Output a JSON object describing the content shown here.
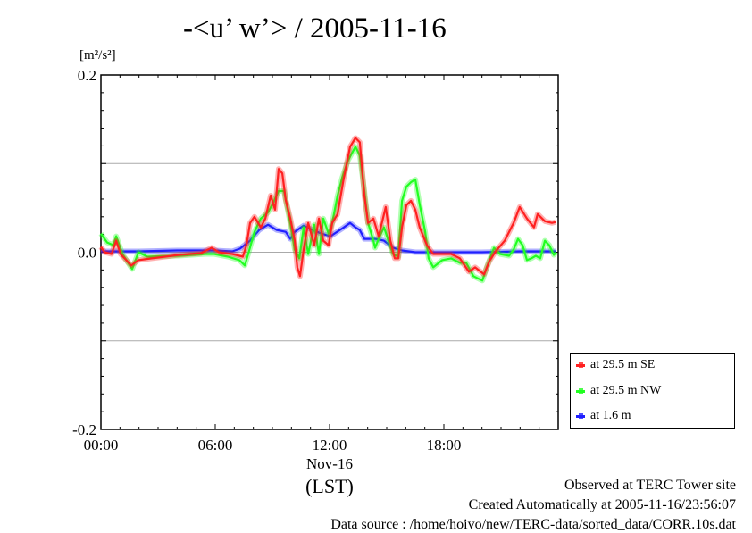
{
  "chart_data": {
    "type": "line",
    "title": "-<u’ w’> / 2005-11-16",
    "ylabel_unit": "[m²/s²]",
    "xlabel": "(LST)",
    "x_date_label": "Nov-16",
    "xlim_hours": [
      0,
      24
    ],
    "ylim": [
      -0.2,
      0.2
    ],
    "x_ticks": [
      {
        "h": 0,
        "label": "00:00"
      },
      {
        "h": 6,
        "label": "06:00"
      },
      {
        "h": 12,
        "label": "12:00"
      },
      {
        "h": 18,
        "label": "18:00"
      }
    ],
    "y_ticks": [
      {
        "v": 0.2,
        "label": "0.2"
      },
      {
        "v": 0.0,
        "label": "0.0"
      },
      {
        "v": -0.2,
        "label": "-0.2"
      }
    ],
    "gridlines_y": [
      0.1,
      0.0,
      -0.1
    ],
    "legend_placement": "bottom-right outside",
    "series": [
      {
        "name": "at 29.5 m SE",
        "color": "#ff2020",
        "points": [
          [
            0,
            0.006
          ],
          [
            0.19,
            0
          ],
          [
            0.56,
            -0.002
          ],
          [
            0.8,
            0.013
          ],
          [
            1.03,
            -0.002
          ],
          [
            1.59,
            -0.015
          ],
          [
            1.97,
            -0.009
          ],
          [
            2.67,
            -0.007
          ],
          [
            3.38,
            -0.005
          ],
          [
            4.08,
            -0.003
          ],
          [
            5.25,
            -0.001
          ],
          [
            5.81,
            0.005
          ],
          [
            6.19,
            0
          ],
          [
            6.89,
            -0.002
          ],
          [
            7.45,
            -0.005
          ],
          [
            7.64,
            0.008
          ],
          [
            7.83,
            0.033
          ],
          [
            8.06,
            0.04
          ],
          [
            8.39,
            0.028
          ],
          [
            8.63,
            0.038
          ],
          [
            8.91,
            0.064
          ],
          [
            9.14,
            0.048
          ],
          [
            9.33,
            0.094
          ],
          [
            9.52,
            0.089
          ],
          [
            9.7,
            0.059
          ],
          [
            9.94,
            0.038
          ],
          [
            10.17,
            0.013
          ],
          [
            10.31,
            -0.017
          ],
          [
            10.45,
            -0.027
          ],
          [
            10.64,
            0.003
          ],
          [
            10.88,
            0.033
          ],
          [
            11.2,
            0.008
          ],
          [
            11.44,
            0.038
          ],
          [
            11.67,
            0.013
          ],
          [
            11.95,
            0.008
          ],
          [
            12.14,
            0.033
          ],
          [
            12.42,
            0.043
          ],
          [
            12.75,
            0.084
          ],
          [
            13.08,
            0.119
          ],
          [
            13.36,
            0.129
          ],
          [
            13.59,
            0.124
          ],
          [
            13.83,
            0.064
          ],
          [
            14.02,
            0.033
          ],
          [
            14.3,
            0.038
          ],
          [
            14.58,
            0.018
          ],
          [
            14.95,
            0.051
          ],
          [
            15.19,
            0.013
          ],
          [
            15.42,
            -0.007
          ],
          [
            15.61,
            -0.007
          ],
          [
            15.8,
            0.028
          ],
          [
            16.03,
            0.053
          ],
          [
            16.27,
            0.058
          ],
          [
            16.5,
            0.048
          ],
          [
            16.73,
            0.028
          ],
          [
            17.11,
            0.008
          ],
          [
            17.44,
            -0.002
          ],
          [
            17.91,
            -0.002
          ],
          [
            18.38,
            -0.002
          ],
          [
            18.84,
            -0.007
          ],
          [
            19.31,
            -0.022
          ],
          [
            19.64,
            -0.017
          ],
          [
            20.11,
            -0.025
          ],
          [
            20.39,
            -0.01
          ],
          [
            20.72,
            0.001
          ],
          [
            21.19,
            0.013
          ],
          [
            21.66,
            0.033
          ],
          [
            21.98,
            0.051
          ],
          [
            22.36,
            0.038
          ],
          [
            22.73,
            0.028
          ],
          [
            22.92,
            0.043
          ],
          [
            23.3,
            0.035
          ],
          [
            23.67,
            0.033
          ],
          [
            23.86,
            0.034
          ]
        ]
      },
      {
        "name": "at 29.5 m NW",
        "color": "#20ff20",
        "points": [
          [
            0,
            0.021
          ],
          [
            0.33,
            0.011
          ],
          [
            0.66,
            0.008
          ],
          [
            0.8,
            0.018
          ],
          [
            1.13,
            -0.002
          ],
          [
            1.64,
            -0.019
          ],
          [
            1.97,
            0
          ],
          [
            2.44,
            -0.005
          ],
          [
            4.08,
            -0.004
          ],
          [
            5.48,
            -0.002
          ],
          [
            5.95,
            -0.002
          ],
          [
            6.66,
            -0.005
          ],
          [
            7.27,
            -0.009
          ],
          [
            7.55,
            -0.015
          ],
          [
            7.73,
            -0.002
          ],
          [
            8.06,
            0.023
          ],
          [
            8.39,
            0.038
          ],
          [
            8.77,
            0.045
          ],
          [
            9.0,
            0.054
          ],
          [
            9.33,
            0.069
          ],
          [
            9.61,
            0.069
          ],
          [
            9.8,
            0.048
          ],
          [
            9.98,
            0.028
          ],
          [
            10.17,
            0.003
          ],
          [
            10.41,
            -0.007
          ],
          [
            10.64,
            0.028
          ],
          [
            10.88,
            -0.002
          ],
          [
            11.2,
            0.031
          ],
          [
            11.44,
            -0.002
          ],
          [
            11.67,
            0.038
          ],
          [
            11.95,
            0.021
          ],
          [
            12.14,
            0.033
          ],
          [
            12.42,
            0.064
          ],
          [
            12.66,
            0.084
          ],
          [
            12.98,
            0.104
          ],
          [
            13.36,
            0.119
          ],
          [
            13.59,
            0.109
          ],
          [
            13.83,
            0.069
          ],
          [
            14.02,
            0.033
          ],
          [
            14.3,
            0.013
          ],
          [
            14.39,
            0.005
          ],
          [
            14.63,
            0.018
          ],
          [
            14.86,
            0.028
          ],
          [
            15.09,
            0.013
          ],
          [
            15.33,
            -0.002
          ],
          [
            15.61,
            -0.005
          ],
          [
            15.8,
            0.058
          ],
          [
            16.03,
            0.074
          ],
          [
            16.27,
            0.079
          ],
          [
            16.5,
            0.082
          ],
          [
            16.73,
            0.054
          ],
          [
            17.02,
            0.023
          ],
          [
            17.2,
            -0.007
          ],
          [
            17.44,
            -0.017
          ],
          [
            17.91,
            -0.009
          ],
          [
            18.38,
            -0.007
          ],
          [
            18.84,
            -0.012
          ],
          [
            19.17,
            -0.012
          ],
          [
            19.55,
            -0.027
          ],
          [
            20.02,
            -0.032
          ],
          [
            20.25,
            -0.017
          ],
          [
            20.63,
            0.005
          ],
          [
            20.95,
            -0.002
          ],
          [
            21.42,
            -0.004
          ],
          [
            21.66,
            0.003
          ],
          [
            21.89,
            0.015
          ],
          [
            22.13,
            0.008
          ],
          [
            22.36,
            -0.009
          ],
          [
            22.59,
            -0.007
          ],
          [
            22.83,
            -0.004
          ],
          [
            23.06,
            -0.007
          ],
          [
            23.3,
            0.013
          ],
          [
            23.53,
            0.008
          ],
          [
            23.77,
            -0.003
          ],
          [
            23.9,
            0
          ]
        ]
      },
      {
        "name": "at 1.6 m",
        "color": "#2020ff",
        "points": [
          [
            0,
            0.001
          ],
          [
            2,
            0.001
          ],
          [
            4,
            0.002
          ],
          [
            6,
            0.002
          ],
          [
            6.9,
            0.001
          ],
          [
            7.3,
            0.004
          ],
          [
            7.83,
            0.013
          ],
          [
            8.3,
            0.025
          ],
          [
            8.77,
            0.031
          ],
          [
            9.23,
            0.025
          ],
          [
            9.7,
            0.023
          ],
          [
            9.94,
            0.015
          ],
          [
            10.17,
            0.023
          ],
          [
            10.64,
            0.03
          ],
          [
            11.11,
            0.025
          ],
          [
            11.58,
            0.021
          ],
          [
            12.05,
            0.018
          ],
          [
            12.75,
            0.028
          ],
          [
            13.08,
            0.033
          ],
          [
            13.36,
            0.028
          ],
          [
            13.59,
            0.025
          ],
          [
            13.83,
            0.015
          ],
          [
            14.39,
            0.015
          ],
          [
            14.86,
            0.013
          ],
          [
            15.33,
            0.005
          ],
          [
            15.8,
            0.002
          ],
          [
            16.5,
            0
          ],
          [
            18,
            0
          ],
          [
            20,
            0
          ],
          [
            22,
            0.001
          ],
          [
            23.9,
            0.001
          ]
        ]
      }
    ]
  },
  "footer": {
    "line1": "Observed at TERC Tower site",
    "line2": "Created Automatically at 2005-11-16/23:56:07",
    "line3": "Data source : /home/hoivo/new/TERC-data/sorted_data/CORR.10s.dat"
  }
}
